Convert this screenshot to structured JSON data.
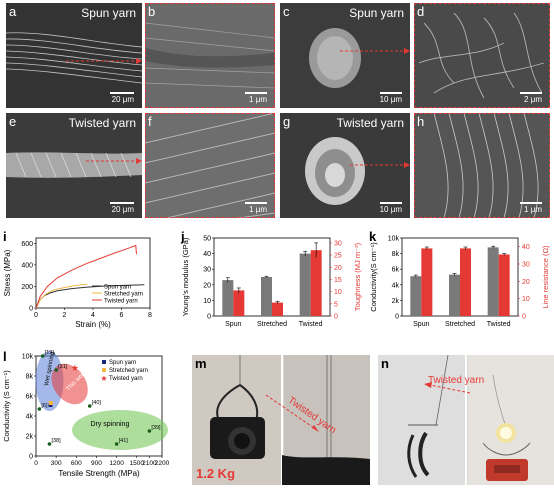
{
  "panels": {
    "a": {
      "label": "a",
      "title": "Spun yarn",
      "scale": "20 μm"
    },
    "b": {
      "label": "b",
      "scale": "1 μm"
    },
    "c": {
      "label": "c",
      "title": "Spun yarn",
      "scale": "10 μm"
    },
    "d": {
      "label": "d",
      "scale": "2 μm"
    },
    "e": {
      "label": "e",
      "title": "Twisted yarn",
      "scale": "20 μm"
    },
    "f": {
      "label": "f",
      "scale": "1 μm"
    },
    "g": {
      "label": "g",
      "title": "Twisted yarn",
      "scale": "10 μm"
    },
    "h": {
      "label": "h",
      "scale": "1 μm"
    },
    "i": {
      "label": "i"
    },
    "j": {
      "label": "j"
    },
    "k": {
      "label": "k"
    },
    "l": {
      "label": "l"
    },
    "m": {
      "label": "m",
      "annotation": "Twisted yarn",
      "weight": "1.2 Kg"
    },
    "n": {
      "label": "n",
      "annotation": "Twisted yarn"
    }
  },
  "colors": {
    "red": "#e53935",
    "gray": "#7a7a7a",
    "orange": "#f5b942",
    "blue": "#5a7fd8",
    "green": "#6cc24a"
  },
  "chart_data": [
    {
      "id": "i",
      "type": "line",
      "xlabel": "Strain (%)",
      "ylabel": "Stress (MPa)",
      "xlim": [
        0,
        8
      ],
      "ylim": [
        0,
        650
      ],
      "xticks": [
        0,
        2,
        4,
        6,
        8
      ],
      "yticks": [
        0,
        200,
        400,
        600
      ],
      "legend_position": "right",
      "series": [
        {
          "name": "Spun yarn",
          "color": "#333333",
          "x": [
            0,
            0.3,
            0.6,
            1.0,
            1.5,
            2.5,
            3.5,
            5.0,
            6.5,
            7.6
          ],
          "y": [
            0,
            80,
            115,
            140,
            160,
            180,
            192,
            205,
            212,
            215
          ]
        },
        {
          "name": "Stretched yarn",
          "color": "#f5b942",
          "x": [
            0,
            0.3,
            0.7,
            1.2,
            2.0,
            2.6,
            3.2,
            3.6
          ],
          "y": [
            0,
            80,
            130,
            165,
            190,
            205,
            215,
            220
          ]
        },
        {
          "name": "Twisted yarn",
          "color": "#e53935",
          "x": [
            0,
            0.3,
            0.8,
            1.5,
            2.5,
            3.5,
            4.5,
            5.5,
            6.5,
            7.0,
            7.05
          ],
          "y": [
            0,
            110,
            200,
            280,
            350,
            410,
            460,
            510,
            555,
            580,
            500
          ]
        }
      ]
    },
    {
      "id": "j",
      "type": "bar",
      "categories": [
        "Spun",
        "Stretched",
        "Twisted"
      ],
      "ylabel": "Young's modulus (GPa)",
      "y2label": "Toughness (MJ m⁻³)",
      "ylim": [
        0,
        50
      ],
      "y2lim": [
        0,
        32
      ],
      "yticks": [
        0,
        10,
        20,
        30,
        40,
        50
      ],
      "y2ticks": [
        0,
        5,
        10,
        15,
        20,
        25,
        30
      ],
      "series": [
        {
          "name": "Young's modulus",
          "axis": "left",
          "color": "#7a7a7a",
          "values": [
            23,
            25,
            40
          ],
          "errors": [
            1.5,
            0.5,
            1.5
          ]
        },
        {
          "name": "Toughness",
          "axis": "right",
          "color": "#e53935",
          "values": [
            10.5,
            5.5,
            27
          ],
          "errors": [
            1,
            0.5,
            3
          ]
        }
      ]
    },
    {
      "id": "k",
      "type": "bar",
      "categories": [
        "Spun",
        "Stretched",
        "Twisted"
      ],
      "ylabel": "Conductivity(S cm⁻¹)",
      "y2label": "Line resistance (Ω)",
      "ylim": [
        0,
        10000
      ],
      "y2lim": [
        0,
        45
      ],
      "yticks": [
        "0",
        "2k",
        "4k",
        "6k",
        "8k",
        "10k"
      ],
      "y2ticks": [
        0,
        10,
        20,
        30,
        40
      ],
      "series": [
        {
          "name": "Conductivity",
          "axis": "left",
          "color": "#7a7a7a",
          "values": [
            5100,
            5300,
            8800
          ],
          "errors": [
            150,
            150,
            150
          ]
        },
        {
          "name": "Line resistance",
          "axis": "right",
          "color": "#e53935",
          "values": [
            39,
            39,
            35.5
          ],
          "errors": [
            0.8,
            0.8,
            0.5
          ]
        }
      ]
    },
    {
      "id": "l",
      "type": "scatter",
      "xlabel": "Tensile Strength (MPa)",
      "ylabel": "Conductivity (S cm⁻¹)",
      "xticks": [
        "0",
        "300",
        "600",
        "900",
        "1200",
        "1500",
        "2100",
        "2200"
      ],
      "yticks": [
        "0",
        "2k",
        "4k",
        "6k",
        "8k",
        "10k"
      ],
      "legend_position": "top-right",
      "regions": [
        {
          "label": "Wet spinning",
          "color": "#5a7fd8"
        },
        {
          "label": "This work",
          "color": "#e53935"
        },
        {
          "label": "Dry spinning",
          "color": "#6cc24a"
        }
      ],
      "series": [
        {
          "name": "Spun yarn",
          "color": "#1a237e",
          "marker": "square",
          "points": [
            {
              "x": 215,
              "y": 5100
            }
          ]
        },
        {
          "name": "Stretched yarn",
          "color": "#f5b942",
          "marker": "square",
          "points": [
            {
              "x": 220,
              "y": 5300
            }
          ]
        },
        {
          "name": "Twisted yarn",
          "color": "#e53935",
          "marker": "star",
          "points": [
            {
              "x": 580,
              "y": 8800
            }
          ]
        }
      ],
      "references": [
        {
          "label": "[19]",
          "x": 100,
          "y": 10000
        },
        {
          "label": "[31]",
          "x": 300,
          "y": 8600
        },
        {
          "label": "[40]",
          "x": 800,
          "y": 5000
        },
        {
          "label": "[38]",
          "x": 200,
          "y": 1200
        },
        {
          "label": "[41]",
          "x": 1200,
          "y": 1200
        },
        {
          "label": "[39]",
          "x": 2100,
          "y": 2500
        },
        {
          "label": "[6]",
          "x": 50,
          "y": 4700
        }
      ]
    }
  ]
}
